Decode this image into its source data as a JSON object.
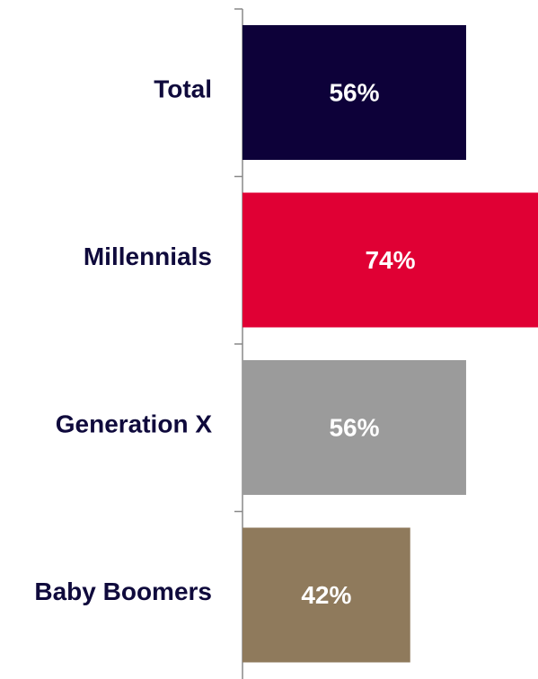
{
  "chart_data": {
    "type": "bar",
    "orientation": "horizontal",
    "categories": [
      "Total",
      "Millennials",
      "Generation X",
      "Baby Boomers"
    ],
    "values": [
      56,
      74,
      56,
      42
    ],
    "value_labels": [
      "56%",
      "74%",
      "56%",
      "42%"
    ],
    "colors": [
      "#0d0139",
      "#e00034",
      "#9b9b9b",
      "#8f7a5c"
    ]
  }
}
